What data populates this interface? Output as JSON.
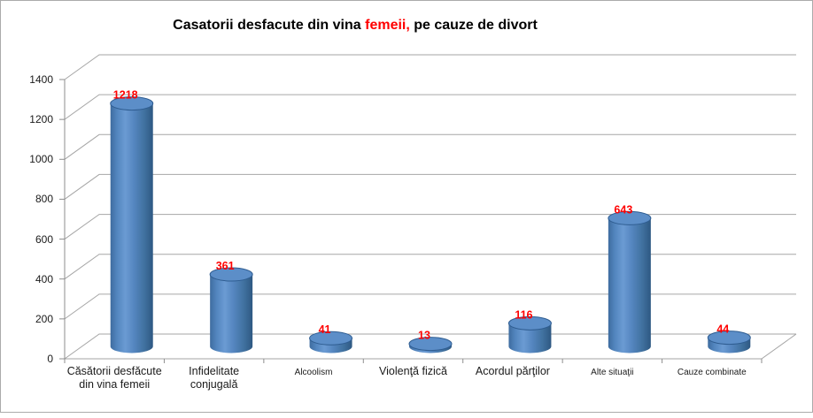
{
  "frame": {
    "background": "#FFFFFF",
    "border_color": "#ABABAB"
  },
  "title": {
    "prefix": "Casatorii desfacute din vina ",
    "highlight": "femeii,",
    "suffix": " pe cauze de divort",
    "text_color": "#000000",
    "highlight_color": "#FF0000"
  },
  "chart_data": {
    "type": "bar",
    "subtype": "3d-cylinder",
    "title": "Casatorii desfacute din vina femeii, pe cauze de divort",
    "categories": [
      "Căsătorii desfăcute din vina femeii",
      "Infidelitate conjugală",
      "Alcoolism",
      "Violenţă fizică",
      "Acordul părţilor",
      "Alte situaţii",
      "Cauze combinate"
    ],
    "values": [
      1218,
      361,
      41,
      13,
      116,
      643,
      44
    ],
    "xlabel": "",
    "ylabel": "",
    "ylim": [
      0,
      1400
    ],
    "yticks": [
      0,
      200,
      400,
      600,
      800,
      1000,
      1200,
      1400
    ],
    "grid": true,
    "legend": false,
    "bar_color": "#4F81BD",
    "bar_edge_dark": "#2E5882",
    "bar_highlight": "#6B9BD3",
    "bar_top_fill": "#5C8EC8",
    "bar_top_stroke": "#2F5D91",
    "data_label_color": "#FF0000",
    "gridline_color": "#A6A6A6",
    "axis_color": "#8E8E8E",
    "axis_text_color": "#1A1A1A"
  }
}
